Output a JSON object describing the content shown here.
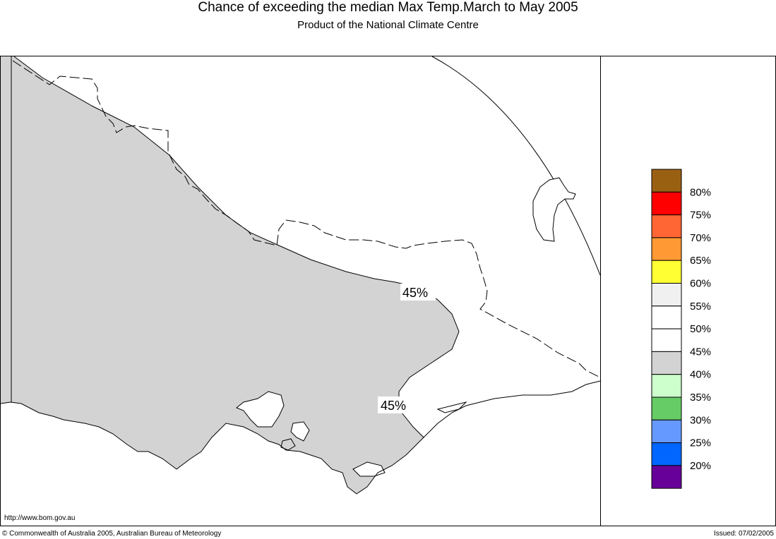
{
  "header": {
    "title": "Chance of exceeding the median Max Temp.March to May 2005",
    "subtitle": "Product of the National Climate Centre"
  },
  "map": {
    "region_labels": [
      "45%",
      "45%"
    ],
    "colors": {
      "below_45": "#d3d3d3",
      "above_45": "#ffffff",
      "lines": "#000000"
    }
  },
  "legend": {
    "bands": [
      {
        "color": "#9a6012",
        "label": "80%"
      },
      {
        "color": "#ff0000",
        "label": "75%"
      },
      {
        "color": "#ff6633",
        "label": "70%"
      },
      {
        "color": "#ff9933",
        "label": "65%"
      },
      {
        "color": "#ffff33",
        "label": "60%"
      },
      {
        "color": "#f0f0f0",
        "label": "55%"
      },
      {
        "color": "#ffffff",
        "label": "50%"
      },
      {
        "color": "#ffffff",
        "label": "45%"
      },
      {
        "color": "#d3d3d3",
        "label": "40%"
      },
      {
        "color": "#ccffcc",
        "label": "35%"
      },
      {
        "color": "#66cc66",
        "label": "30%"
      },
      {
        "color": "#6699ff",
        "label": "25%"
      },
      {
        "color": "#0066ff",
        "label": "20%"
      },
      {
        "color": "#660099",
        "label": ""
      }
    ]
  },
  "footer": {
    "url": "http://www.bom.gov.au",
    "copyright": "© Commonwealth of Australia 2005, Australian Bureau of Meteorology",
    "issued": "Issued: 07/02/2005"
  }
}
